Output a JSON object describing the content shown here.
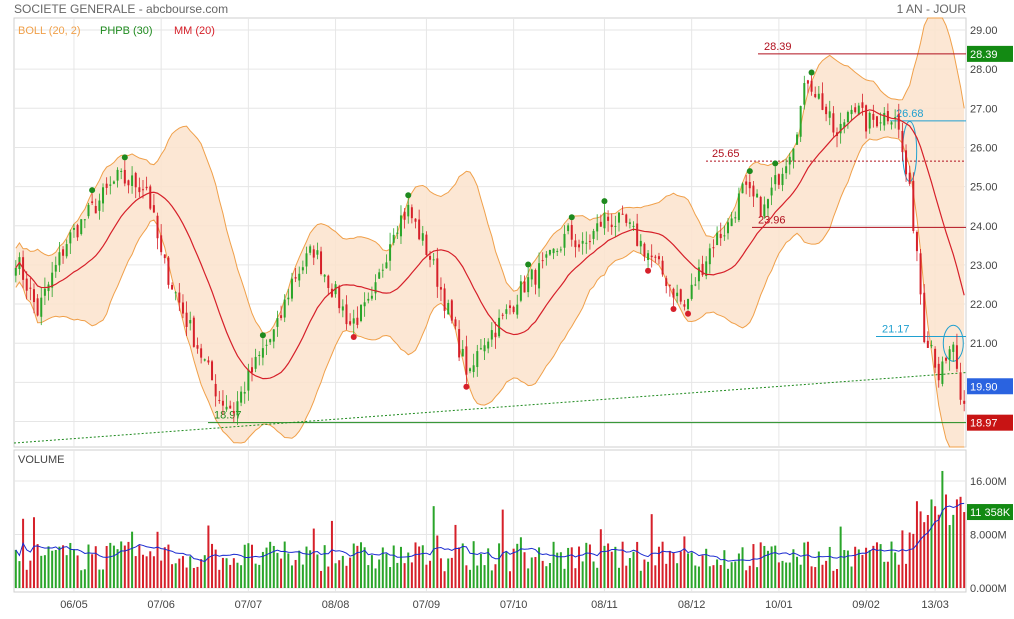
{
  "header": {
    "title": "SOCIETE GENERALE - abcbourse.com",
    "period": "1 AN - JOUR"
  },
  "legend": {
    "boll": "BOLL (20, 2)",
    "phpb": "PHPB (30)",
    "mm": "MM (20)"
  },
  "volume_label": "VOLUME",
  "colors": {
    "up": "#2aa52a",
    "down": "#d6202a",
    "boll_fill": "#fbe3cc",
    "boll_line": "#f0a04a",
    "mm": "#d6202a",
    "volume_avg": "#1a2ad0",
    "support": "#1e8a1e",
    "resistance": "#b0101e",
    "highlight": "#20a0d0"
  },
  "chart_data": [
    {
      "type": "candlestick",
      "title": "SOCIETE GENERALE",
      "x_ticks": [
        "06/05",
        "07/06",
        "07/07",
        "08/08",
        "07/09",
        "07/10",
        "08/11",
        "08/12",
        "10/01",
        "09/02",
        "13/03"
      ],
      "y_ticks": [
        "19.00",
        "20.00",
        "21.00",
        "22.00",
        "23.00",
        "24.00",
        "25.00",
        "26.00",
        "27.00",
        "28.00",
        "29.00"
      ],
      "ylim": [
        18.4,
        29.2
      ],
      "close_anchors": [
        [
          0,
          23.2
        ],
        [
          6,
          21.8
        ],
        [
          14,
          23.6
        ],
        [
          20,
          24.3
        ],
        [
          28,
          25.2
        ],
        [
          36,
          25.0
        ],
        [
          40,
          23.2
        ],
        [
          46,
          21.8
        ],
        [
          52,
          20.5
        ],
        [
          56,
          19.6
        ],
        [
          60,
          19.3
        ],
        [
          64,
          20.1
        ],
        [
          68,
          20.8
        ],
        [
          72,
          21.4
        ],
        [
          76,
          22.6
        ],
        [
          82,
          23.4
        ],
        [
          86,
          22.6
        ],
        [
          92,
          21.5
        ],
        [
          98,
          22.0
        ],
        [
          104,
          24.0
        ],
        [
          108,
          24.4
        ],
        [
          114,
          23.2
        ],
        [
          118,
          22.1
        ],
        [
          122,
          20.9
        ],
        [
          125,
          20.1
        ],
        [
          128,
          21.0
        ],
        [
          134,
          21.6
        ],
        [
          140,
          22.5
        ],
        [
          146,
          23.0
        ],
        [
          152,
          23.8
        ],
        [
          156,
          23.4
        ],
        [
          162,
          24.2
        ],
        [
          168,
          24.0
        ],
        [
          174,
          23.3
        ],
        [
          180,
          22.5
        ],
        [
          184,
          21.9
        ],
        [
          188,
          22.8
        ],
        [
          192,
          23.6
        ],
        [
          196,
          24.0
        ],
        [
          200,
          24.9
        ],
        [
          206,
          24.4
        ],
        [
          210,
          25.3
        ],
        [
          214,
          26.2
        ],
        [
          218,
          27.8
        ],
        [
          222,
          27.1
        ],
        [
          226,
          26.2
        ],
        [
          230,
          27.2
        ],
        [
          234,
          26.6
        ],
        [
          238,
          26.8
        ],
        [
          242,
          26.9
        ],
        [
          246,
          24.8
        ],
        [
          248,
          23.4
        ],
        [
          250,
          21.3
        ],
        [
          252,
          21.0
        ],
        [
          254,
          20.2
        ],
        [
          256,
          20.4
        ],
        [
          258,
          21.0
        ],
        [
          260,
          19.3
        ]
      ],
      "bollinger": {
        "period": 20,
        "stddev": 2
      },
      "moving_average": {
        "period": 20
      },
      "levels": [
        {
          "label": "28.39",
          "value": 28.39
        },
        {
          "label": "26.68",
          "value": 26.68
        },
        {
          "label": "25.65",
          "value": 25.65
        },
        {
          "label": "23.96",
          "value": 23.96
        },
        {
          "label": "21.17",
          "value": 21.17
        },
        {
          "label": "18.97",
          "value": 18.97
        }
      ],
      "badges": [
        {
          "text": "28.39",
          "value": 28.39
        },
        {
          "text": "19.90",
          "value": 19.9
        },
        {
          "text": "18.97",
          "value": 18.97
        }
      ],
      "trendline": {
        "from": [
          0,
          18.45
        ],
        "to": [
          264,
          20.25
        ]
      }
    },
    {
      "type": "bar",
      "title": "VOLUME",
      "y_ticks": [
        "0.000M",
        "8.000M",
        "16.00M"
      ],
      "ylim": [
        0,
        18.5
      ],
      "last_volume_label": "11 358K",
      "last_volume": 11.358
    }
  ]
}
